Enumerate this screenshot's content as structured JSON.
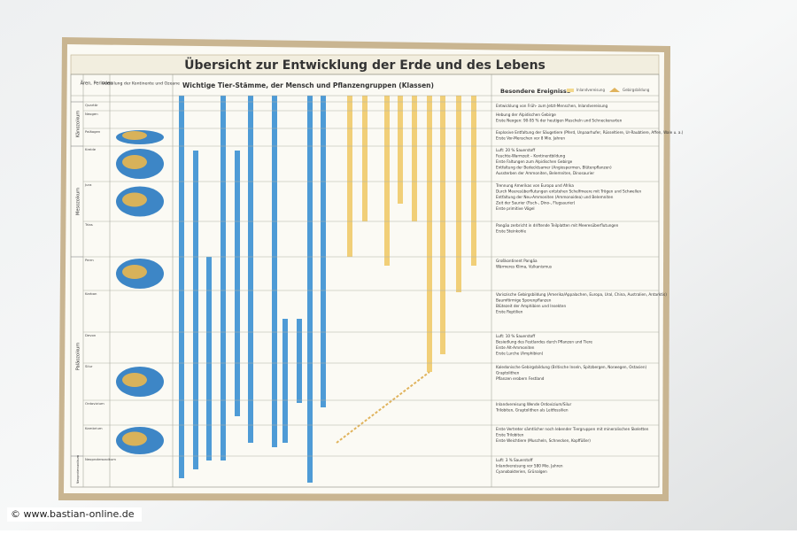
{
  "title": "Übersicht zur Entwicklung der Erde und des Lebens",
  "headers": {
    "periods": "Ären, Perioden",
    "continents": "Verteilung der Kontinente und Ozeane",
    "life": "Wichtige Tier-Stämme, der Mensch und Pflanzengruppen (Klassen)",
    "events": "Besondere Ereignisse"
  },
  "legend": [
    "Inlandvereisung",
    "Gebirgsbildung"
  ],
  "eras": [
    "Känozoikum",
    "Mesozoikum",
    "Paläozoikum",
    "Neoproterozoikum"
  ],
  "periods": [
    {
      "name": "Quartär",
      "events": [
        "Entwicklung von Früh- zum Jetzt-Menschen, Inlandvereisung"
      ]
    },
    {
      "name": "Neogen",
      "events": [
        "Hebung der Alpidischen Gebirge",
        "Erste Neogen: 90-95 % der heutigen Muscheln und Schneckenarten"
      ]
    },
    {
      "name": "Paläogen",
      "events": [
        "Explosive Entfaltung der Säugetiere (Pferd, Unpaarhufer, Rüsseltiere, Ur-Raubtiere, Affen, Wale u. a.)",
        "Erste Vor-Menschen vor 8 Mio. Jahren"
      ]
    },
    {
      "name": "Kreide",
      "events": [
        "Luft: 20 % Sauerstoff",
        "Feuchte-Warmzeit – Kontinentbildung",
        "Erste Faltungen zum Alpidischen Gebirge",
        "Entfaltung der Bedecktsamer (Angiospermen, Blütenpflanzen)",
        "Aussterben der Ammoniten, Belemniten, Dinosaurier"
      ]
    },
    {
      "name": "Jura",
      "events": [
        "Trennung Amerikas von Europa und Afrika",
        "Durch Meeresüberflutungen entstehen Schelfmeere mit Trögen und Schwellen",
        "Entfaltung der Neu-Ammoniten (Ammonoidea) und Belemniten",
        "Zeit der Saurier (Fisch-, Dino-, Flugsaurier)",
        "Erste primitive Vögel"
      ]
    },
    {
      "name": "Trias",
      "events": [
        "Pangäa zerbricht in driftende Teilplatten mit Meeresüberflutungen",
        "Erste Steinkohle"
      ]
    },
    {
      "name": "Perm",
      "events": [
        "Großkontinent Pangäa",
        "Wärmeres Klima, Vulkanismus"
      ]
    },
    {
      "name": "Karbon",
      "events": [
        "Variszische Gebirgsbildung (Amerika/Appalachen, Europa, Ural, China, Australien, Antarktis)",
        "Baumförmige Sporenpflanzen",
        "Blütezeit der Amphibien und Insekten",
        "Erste Reptilien"
      ]
    },
    {
      "name": "Devon",
      "events": [
        "Luft: 10 % Sauerstoff",
        "Besiedlung des Festlandes durch Pflanzen und Tiere",
        "Erste Alt-Ammoniten",
        "Erste Lurche (Amphibien)"
      ]
    },
    {
      "name": "Silur",
      "events": [
        "Kaledonische Gebirgsbildung (Britische Inseln, Spitzbergen, Norwegen, Ostasien)",
        "Graptolithen",
        "Pflanzen erobern Festland"
      ]
    },
    {
      "name": "Ordovizium",
      "events": [
        "Inlandvereisung Wende Ordovizium/Silur",
        "Trilobiten, Graptolithen als Leitfossilien"
      ]
    },
    {
      "name": "Kambrium",
      "events": [
        "Erste Vertreter sämtlicher noch lebender Tiergruppen mit mineralischen Skeletten",
        "Erste Trilobiten",
        "Erste Weichtiere (Muscheln, Schnecken, Kopffüßer)"
      ]
    },
    {
      "name": "Neoproterozoikum",
      "events": [
        "Luft: 3 % Sauerstoff",
        "Inlandvereisung vor 580 Mio. Jahren",
        "Cyanobakterien, Grünalgen"
      ]
    }
  ],
  "watermark": "© www.bastian-online.de"
}
